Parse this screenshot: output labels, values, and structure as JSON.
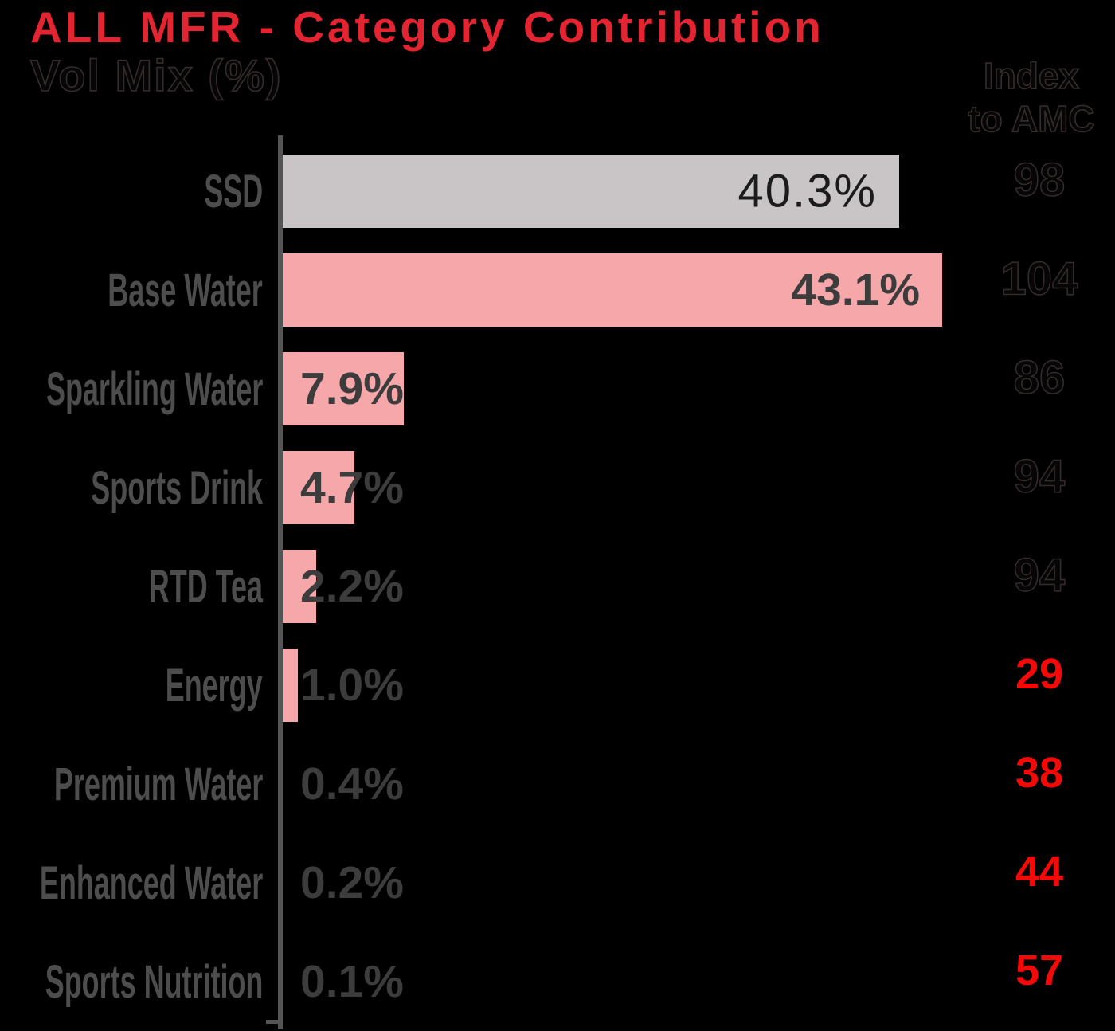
{
  "header": {
    "title": "ALL MFR - Category Contribution",
    "subtitle": "Vol Mix (%)",
    "index_header_line1": "Index",
    "index_header_line2": "to AMC"
  },
  "colors": {
    "background": "#000000",
    "title_red": "#e42430",
    "index_red": "#f50808",
    "bar_pink": "#f5a7aa",
    "bar_gray": "#c9c4c6",
    "label_gray": "#4d4d4d",
    "value_gray": "#3c3c3c",
    "value_dark": "#1b1b1b",
    "axis_gray": "#545454",
    "dark_text": "#060606",
    "dark_edge": "#372c2c"
  },
  "chart_data": {
    "type": "bar",
    "orientation": "horizontal",
    "title": "ALL MFR - Category Contribution",
    "value_axis_label": "Vol Mix (%)",
    "secondary_column_label": "Index to AMC",
    "categories": [
      "SSD",
      "Base Water",
      "Sparkling Water",
      "Sports Drink",
      "RTD Tea",
      "Energy",
      "Premium Water",
      "Enhanced Water",
      "Sports Nutrition"
    ],
    "values": [
      40.3,
      43.1,
      7.9,
      4.7,
      2.2,
      1.0,
      0.4,
      0.2,
      0.1
    ],
    "value_labels": [
      "40.3%",
      "43.1%",
      "7.9%",
      "4.7%",
      "2.2%",
      "1.0%",
      "0.4%",
      "0.2%",
      "0.1%"
    ],
    "index_values": [
      98,
      104,
      86,
      94,
      94,
      29,
      38,
      44,
      57
    ],
    "index_styles": [
      "dark",
      "dark",
      "dark",
      "dark",
      "dark",
      "red",
      "red",
      "red",
      "red"
    ],
    "bar_colors": [
      "gray",
      "pink",
      "pink",
      "pink",
      "pink",
      "pink",
      "pink",
      "pink",
      "pink"
    ],
    "value_styles": [
      "light",
      "bold",
      "bold",
      "bold",
      "bold",
      "bold",
      "bold",
      "bold",
      "bold"
    ],
    "xlim": [
      0,
      45
    ],
    "grid": false,
    "legend": false
  }
}
